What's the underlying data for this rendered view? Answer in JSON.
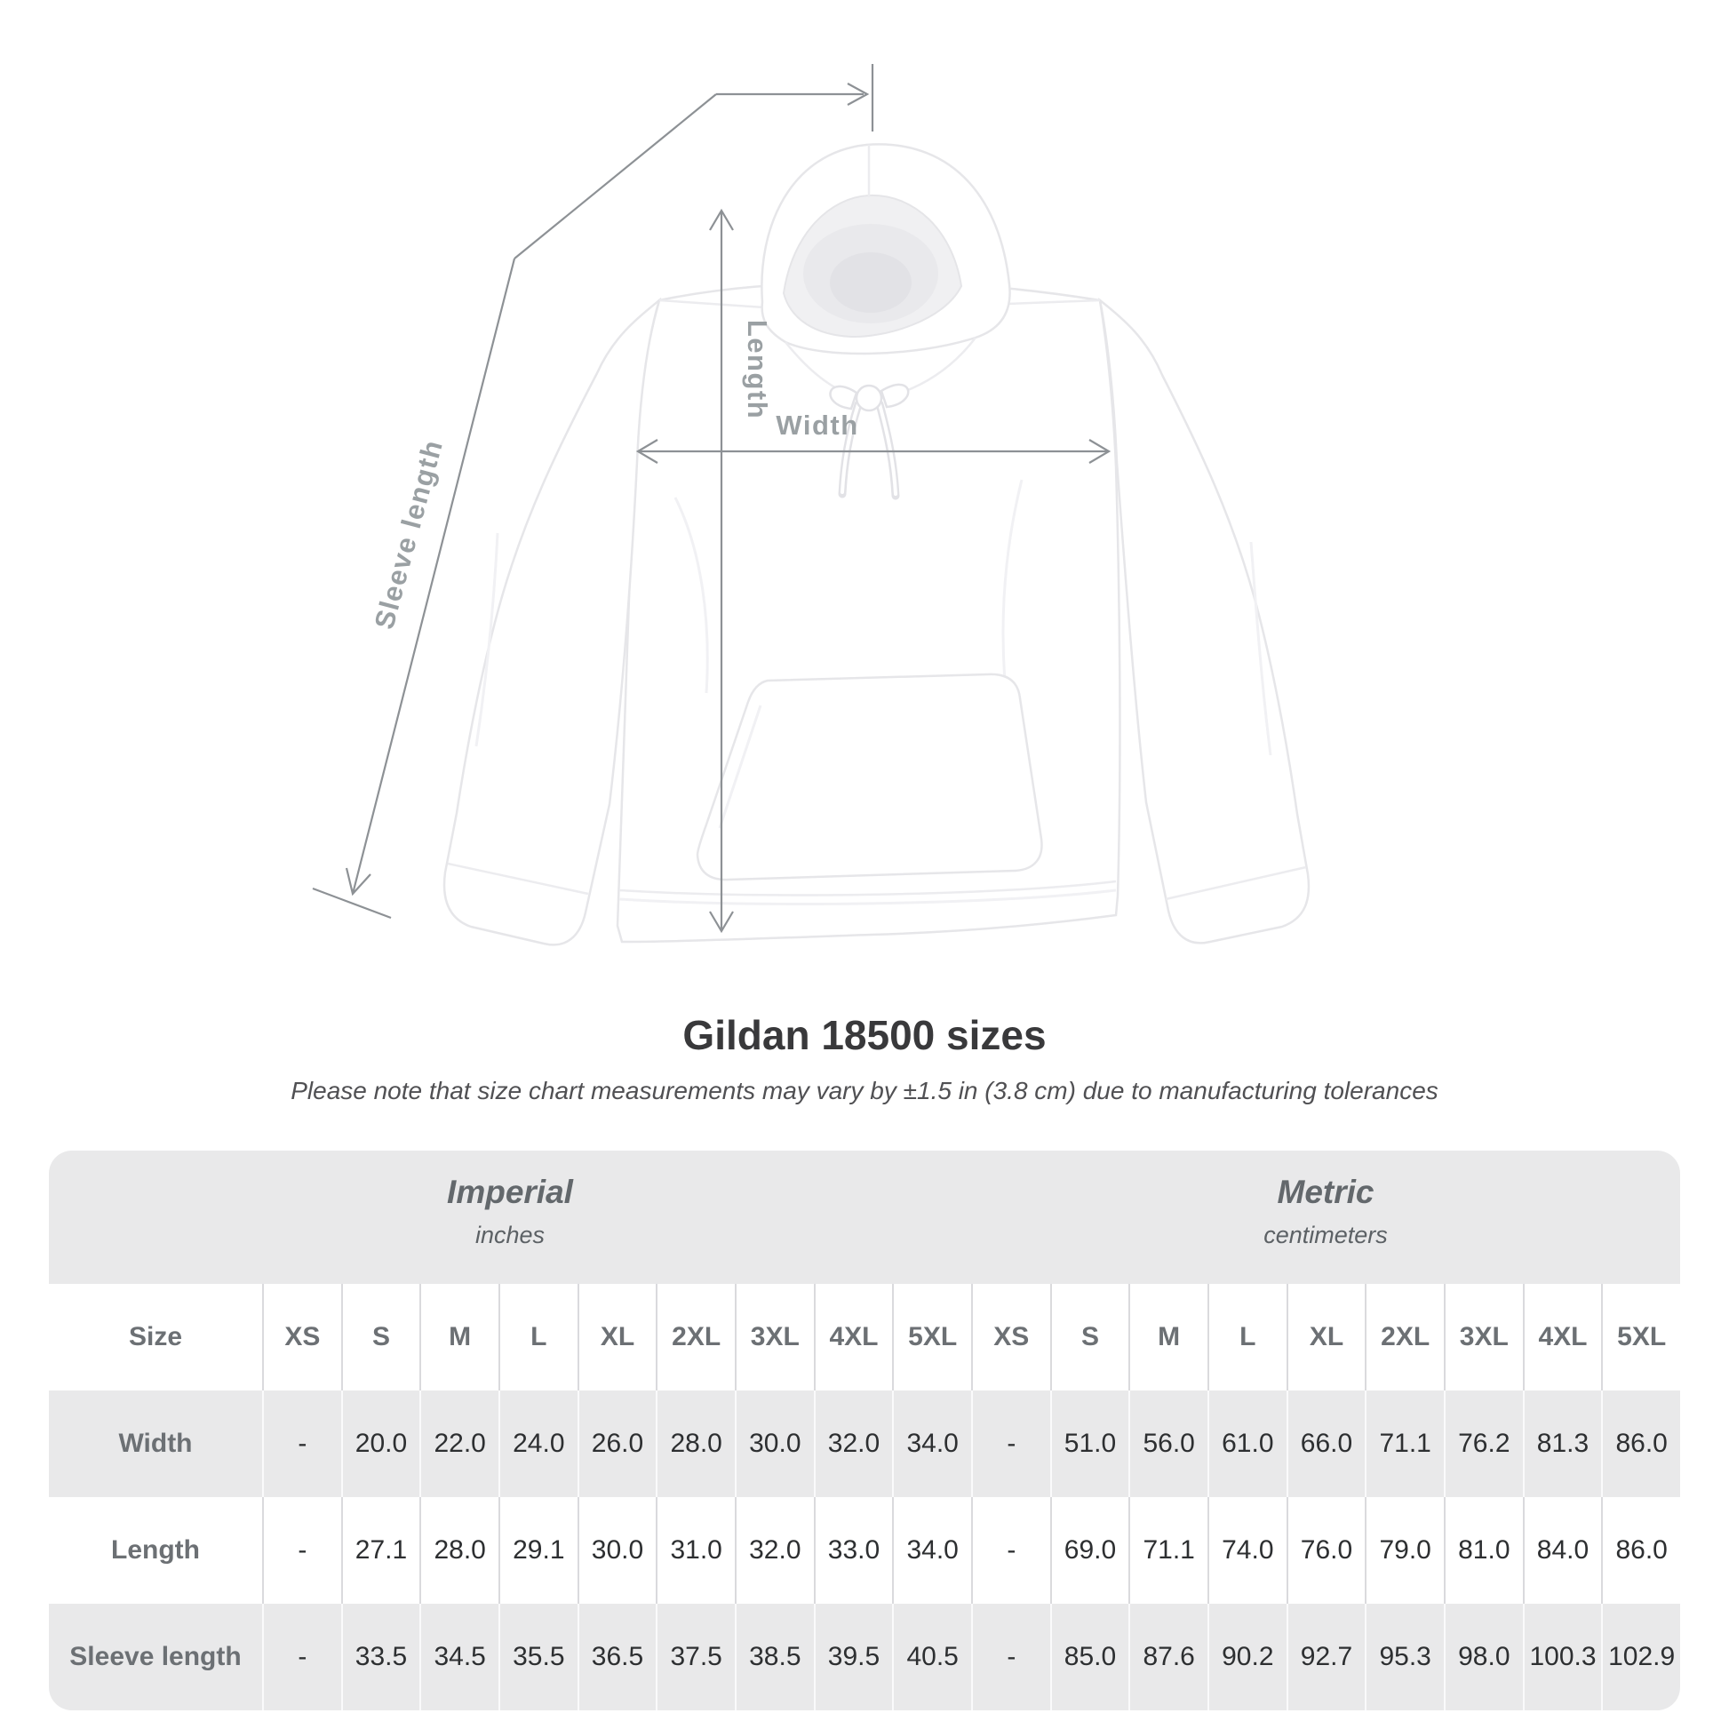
{
  "diagram": {
    "sleeve_label": "Sleeve length",
    "length_label": "Length",
    "width_label": "Width"
  },
  "title": "Gildan 18500 sizes",
  "subtitle": "Please note that size chart measurements may vary by ±1.5 in (3.8 cm) due to manufacturing tolerances",
  "table": {
    "groups": [
      {
        "label": "Imperial",
        "unit": "inches"
      },
      {
        "label": "Metric",
        "unit": "centimeters"
      }
    ],
    "size_col_header": "Size",
    "sizes": [
      "XS",
      "S",
      "M",
      "L",
      "XL",
      "2XL",
      "3XL",
      "4XL",
      "5XL"
    ],
    "rows": [
      {
        "label": "Width",
        "imperial": [
          "-",
          "20.0",
          "22.0",
          "24.0",
          "26.0",
          "28.0",
          "30.0",
          "32.0",
          "34.0"
        ],
        "metric": [
          "-",
          "51.0",
          "56.0",
          "61.0",
          "66.0",
          "71.1",
          "76.2",
          "81.3",
          "86.0"
        ]
      },
      {
        "label": "Length",
        "imperial": [
          "-",
          "27.1",
          "28.0",
          "29.1",
          "30.0",
          "31.0",
          "32.0",
          "33.0",
          "34.0"
        ],
        "metric": [
          "-",
          "69.0",
          "71.1",
          "74.0",
          "76.0",
          "79.0",
          "81.0",
          "84.0",
          "86.0"
        ]
      },
      {
        "label": "Sleeve length",
        "imperial": [
          "-",
          "33.5",
          "34.5",
          "35.5",
          "36.5",
          "37.5",
          "38.5",
          "39.5",
          "40.5"
        ],
        "metric": [
          "-",
          "85.0",
          "87.6",
          "90.2",
          "92.7",
          "95.3",
          "98.0",
          "100.3",
          "102.9"
        ]
      }
    ]
  },
  "chart_data": {
    "type": "table",
    "title": "Gildan 18500 sizes",
    "unit_groups": [
      "Imperial (inches)",
      "Metric (centimeters)"
    ],
    "columns": [
      "Size",
      "XS",
      "S",
      "M",
      "L",
      "XL",
      "2XL",
      "3XL",
      "4XL",
      "5XL",
      "XS",
      "S",
      "M",
      "L",
      "XL",
      "2XL",
      "3XL",
      "4XL",
      "5XL"
    ],
    "rows": [
      [
        "Width",
        "-",
        "20.0",
        "22.0",
        "24.0",
        "26.0",
        "28.0",
        "30.0",
        "32.0",
        "34.0",
        "-",
        "51.0",
        "56.0",
        "61.0",
        "66.0",
        "71.1",
        "76.2",
        "81.3",
        "86.0"
      ],
      [
        "Length",
        "-",
        "27.1",
        "28.0",
        "29.1",
        "30.0",
        "31.0",
        "32.0",
        "33.0",
        "34.0",
        "-",
        "69.0",
        "71.1",
        "74.0",
        "76.0",
        "79.0",
        "81.0",
        "84.0",
        "86.0"
      ],
      [
        "Sleeve length",
        "-",
        "33.5",
        "34.5",
        "35.5",
        "36.5",
        "37.5",
        "38.5",
        "39.5",
        "40.5",
        "-",
        "85.0",
        "87.6",
        "90.2",
        "92.7",
        "95.3",
        "98.0",
        "100.3",
        "102.9"
      ]
    ]
  },
  "colors": {
    "table_band": "#e9e9ea",
    "divider_on_white": "#dadadd",
    "divider_on_gray": "#fafafb",
    "label_text": "#6c7074",
    "value_text": "#2d2f31",
    "measure_line": "#8d9195",
    "measure_label": "#9aa0a3",
    "title_text": "#39393b",
    "subtitle_text": "#505053"
  }
}
